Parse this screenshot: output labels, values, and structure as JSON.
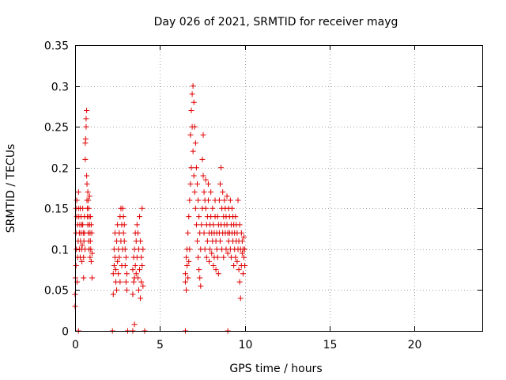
{
  "chart_data": {
    "type": "scatter",
    "title": "Day 026 of 2021, SRMTID for receiver mayg",
    "xlabel": "GPS time / hours",
    "ylabel": "SRMTID / TECUs",
    "xlim": [
      0,
      24
    ],
    "ylim": [
      0,
      0.35
    ],
    "x_ticks": [
      0,
      5,
      10,
      15,
      20
    ],
    "y_ticks": [
      0,
      0.05,
      0.1,
      0.15,
      0.2,
      0.25,
      0.3,
      0.35
    ],
    "x_tick_labels": [
      "0",
      "5",
      "10",
      "15",
      "20"
    ],
    "y_tick_labels": [
      "0",
      "0.05",
      "0.1",
      "0.15",
      "0.2",
      "0.25",
      "0.3",
      "0.35"
    ],
    "grid": true,
    "marker": "+",
    "color": "#e00000",
    "series": [
      {
        "name": "SRMTID",
        "points": [
          [
            0.0,
            0.045
          ],
          [
            0.0,
            0.03
          ],
          [
            0.02,
            0.065
          ],
          [
            0.05,
            0.08
          ],
          [
            0.05,
            0.12
          ],
          [
            0.05,
            0.15
          ],
          [
            0.08,
            0.1
          ],
          [
            0.1,
            0.14
          ],
          [
            0.1,
            0.16
          ],
          [
            0.12,
            0.06
          ],
          [
            0.15,
            0.09
          ],
          [
            0.15,
            0.13
          ],
          [
            0.18,
            0.11
          ],
          [
            0.2,
            0.15
          ],
          [
            0.2,
            0.17
          ],
          [
            0.22,
            0.14
          ],
          [
            0.25,
            0.12
          ],
          [
            0.25,
            0.1
          ],
          [
            0.28,
            0.13
          ],
          [
            0.3,
            0.15
          ],
          [
            0.3,
            0.09
          ],
          [
            0.32,
            0.11
          ],
          [
            0.35,
            0.14
          ],
          [
            0.35,
            0.12
          ],
          [
            0.38,
            0.1
          ],
          [
            0.4,
            0.13
          ],
          [
            0.4,
            0.085
          ],
          [
            0.42,
            0.105
          ],
          [
            0.45,
            0.13
          ],
          [
            0.45,
            0.15
          ],
          [
            0.48,
            0.12
          ],
          [
            0.5,
            0.09
          ],
          [
            0.5,
            0.065
          ],
          [
            0.52,
            0.11
          ],
          [
            0.55,
            0.12
          ],
          [
            0.55,
            0.14
          ],
          [
            0.58,
            0.1
          ],
          [
            0.6,
            0.23
          ],
          [
            0.6,
            0.21
          ],
          [
            0.62,
            0.235
          ],
          [
            0.65,
            0.25
          ],
          [
            0.65,
            0.26
          ],
          [
            0.68,
            0.27
          ],
          [
            0.68,
            0.19
          ],
          [
            0.7,
            0.18
          ],
          [
            0.7,
            0.16
          ],
          [
            0.72,
            0.15
          ],
          [
            0.72,
            0.14
          ],
          [
            0.75,
            0.17
          ],
          [
            0.75,
            0.13
          ],
          [
            0.78,
            0.16
          ],
          [
            0.78,
            0.12
          ],
          [
            0.8,
            0.15
          ],
          [
            0.8,
            0.11
          ],
          [
            0.82,
            0.14
          ],
          [
            0.82,
            0.1
          ],
          [
            0.85,
            0.13
          ],
          [
            0.85,
            0.165
          ],
          [
            0.88,
            0.12
          ],
          [
            0.88,
            0.09
          ],
          [
            0.9,
            0.14
          ],
          [
            0.9,
            0.11
          ],
          [
            0.92,
            0.1
          ],
          [
            0.95,
            0.13
          ],
          [
            0.95,
            0.085
          ],
          [
            0.98,
            0.12
          ],
          [
            1.0,
            0.065
          ],
          [
            1.0,
            0.095
          ],
          [
            2.25,
            0.045
          ],
          [
            2.25,
            0.07
          ],
          [
            2.3,
            0.08
          ],
          [
            2.3,
            0.1
          ],
          [
            2.35,
            0.09
          ],
          [
            2.35,
            0.12
          ],
          [
            2.4,
            0.06
          ],
          [
            2.4,
            0.075
          ],
          [
            2.45,
            0.05
          ],
          [
            2.45,
            0.11
          ],
          [
            2.5,
            0.085
          ],
          [
            2.5,
            0.13
          ],
          [
            2.55,
            0.07
          ],
          [
            2.55,
            0.1
          ],
          [
            2.6,
            0.09
          ],
          [
            2.6,
            0.12
          ],
          [
            2.65,
            0.14
          ],
          [
            2.65,
            0.06
          ],
          [
            2.7,
            0.15
          ],
          [
            2.7,
            0.11
          ],
          [
            2.75,
            0.13
          ],
          [
            2.75,
            0.08
          ],
          [
            2.8,
            0.15
          ],
          [
            2.8,
            0.1
          ],
          [
            2.85,
            0.14
          ],
          [
            2.85,
            0.12
          ],
          [
            2.9,
            0.11
          ],
          [
            2.9,
            0.13
          ],
          [
            2.95,
            0.1
          ],
          [
            2.95,
            0.08
          ],
          [
            3.0,
            0.09
          ],
          [
            3.0,
            0.06
          ],
          [
            3.05,
            0.05
          ],
          [
            3.05,
            0.07
          ],
          [
            3.4,
            0.075
          ],
          [
            3.4,
            0.045
          ],
          [
            3.45,
            0.06
          ],
          [
            3.45,
            0.09
          ],
          [
            3.5,
            0.065
          ],
          [
            3.5,
            0.1
          ],
          [
            3.55,
            0.12
          ],
          [
            3.55,
            0.08
          ],
          [
            3.6,
            0.11
          ],
          [
            3.6,
            0.07
          ],
          [
            3.65,
            0.13
          ],
          [
            3.65,
            0.09
          ],
          [
            3.7,
            0.12
          ],
          [
            3.7,
            0.065
          ],
          [
            3.75,
            0.1
          ],
          [
            3.75,
            0.05
          ],
          [
            3.8,
            0.14
          ],
          [
            3.8,
            0.075
          ],
          [
            3.85,
            0.11
          ],
          [
            3.85,
            0.04
          ],
          [
            3.9,
            0.09
          ],
          [
            3.9,
            0.06
          ],
          [
            3.95,
            0.08
          ],
          [
            3.95,
            0.15
          ],
          [
            4.0,
            0.1
          ],
          [
            4.0,
            0.055
          ],
          [
            6.5,
            0.06
          ],
          [
            6.5,
            0.07
          ],
          [
            6.55,
            0.05
          ],
          [
            6.55,
            0.09
          ],
          [
            6.6,
            0.08
          ],
          [
            6.6,
            0.1
          ],
          [
            6.65,
            0.065
          ],
          [
            6.65,
            0.12
          ],
          [
            6.7,
            0.14
          ],
          [
            6.7,
            0.085
          ],
          [
            6.75,
            0.1
          ],
          [
            6.75,
            0.16
          ],
          [
            6.8,
            0.24
          ],
          [
            6.8,
            0.18
          ],
          [
            6.85,
            0.27
          ],
          [
            6.85,
            0.2
          ],
          [
            6.9,
            0.29
          ],
          [
            6.9,
            0.25
          ],
          [
            6.95,
            0.3
          ],
          [
            6.95,
            0.22
          ],
          [
            7.0,
            0.28
          ],
          [
            7.0,
            0.19
          ],
          [
            7.05,
            0.25
          ],
          [
            7.05,
            0.17
          ],
          [
            7.1,
            0.23
          ],
          [
            7.1,
            0.15
          ],
          [
            7.15,
            0.2
          ],
          [
            7.15,
            0.13
          ],
          [
            7.2,
            0.18
          ],
          [
            7.2,
            0.11
          ],
          [
            7.25,
            0.16
          ],
          [
            7.25,
            0.09
          ],
          [
            7.3,
            0.14
          ],
          [
            7.3,
            0.075
          ],
          [
            7.35,
            0.12
          ],
          [
            7.35,
            0.065
          ],
          [
            7.4,
            0.1
          ],
          [
            7.4,
            0.055
          ],
          [
            7.45,
            0.13
          ],
          [
            7.5,
            0.21
          ],
          [
            7.5,
            0.15
          ],
          [
            7.55,
            0.24
          ],
          [
            7.55,
            0.19
          ],
          [
            7.6,
            0.17
          ],
          [
            7.6,
            0.12
          ],
          [
            7.65,
            0.16
          ],
          [
            7.65,
            0.1
          ],
          [
            7.7,
            0.15
          ],
          [
            7.7,
            0.185
          ],
          [
            7.75,
            0.13
          ],
          [
            7.75,
            0.09
          ],
          [
            7.8,
            0.14
          ],
          [
            7.8,
            0.11
          ],
          [
            7.85,
            0.18
          ],
          [
            7.85,
            0.16
          ],
          [
            7.9,
            0.12
          ],
          [
            7.9,
            0.085
          ],
          [
            7.95,
            0.13
          ],
          [
            7.95,
            0.1
          ],
          [
            8.0,
            0.14
          ],
          [
            8.0,
            0.17
          ],
          [
            8.05,
            0.12
          ],
          [
            8.05,
            0.095
          ],
          [
            8.1,
            0.15
          ],
          [
            8.1,
            0.11
          ],
          [
            8.15,
            0.13
          ],
          [
            8.15,
            0.08
          ],
          [
            8.2,
            0.12
          ],
          [
            8.2,
            0.09
          ],
          [
            8.25,
            0.16
          ],
          [
            8.25,
            0.14
          ],
          [
            8.3,
            0.11
          ],
          [
            8.3,
            0.075
          ],
          [
            8.35,
            0.12
          ],
          [
            8.35,
            0.1
          ],
          [
            8.4,
            0.14
          ],
          [
            8.4,
            0.09
          ],
          [
            8.45,
            0.13
          ],
          [
            8.45,
            0.07
          ],
          [
            8.5,
            0.12
          ],
          [
            8.5,
            0.16
          ],
          [
            8.55,
            0.18
          ],
          [
            8.55,
            0.11
          ],
          [
            8.6,
            0.2
          ],
          [
            8.6,
            0.13
          ],
          [
            8.65,
            0.15
          ],
          [
            8.65,
            0.1
          ],
          [
            8.7,
            0.17
          ],
          [
            8.7,
            0.12
          ],
          [
            8.75,
            0.14
          ],
          [
            8.75,
            0.09
          ],
          [
            8.8,
            0.16
          ],
          [
            8.8,
            0.13
          ],
          [
            8.85,
            0.12
          ],
          [
            8.85,
            0.15
          ],
          [
            8.9,
            0.14
          ],
          [
            8.9,
            0.1
          ],
          [
            8.95,
            0.13
          ],
          [
            8.95,
            0.165
          ],
          [
            9.0,
            0.12
          ],
          [
            9.0,
            0.095
          ],
          [
            9.05,
            0.15
          ],
          [
            9.05,
            0.11
          ],
          [
            9.1,
            0.14
          ],
          [
            9.1,
            0.12
          ],
          [
            9.15,
            0.16
          ],
          [
            9.15,
            0.1
          ],
          [
            9.2,
            0.13
          ],
          [
            9.2,
            0.09
          ],
          [
            9.25,
            0.15
          ],
          [
            9.25,
            0.12
          ],
          [
            9.3,
            0.14
          ],
          [
            9.3,
            0.11
          ],
          [
            9.35,
            0.13
          ],
          [
            9.35,
            0.08
          ],
          [
            9.4,
            0.12
          ],
          [
            9.4,
            0.1
          ],
          [
            9.45,
            0.14
          ],
          [
            9.45,
            0.09
          ],
          [
            9.5,
            0.13
          ],
          [
            9.5,
            0.11
          ],
          [
            9.55,
            0.12
          ],
          [
            9.55,
            0.085
          ],
          [
            9.6,
            0.16
          ],
          [
            9.6,
            0.1
          ],
          [
            9.65,
            0.11
          ],
          [
            9.65,
            0.075
          ],
          [
            9.7,
            0.13
          ],
          [
            9.7,
            0.06
          ],
          [
            9.75,
            0.1
          ],
          [
            9.75,
            0.04
          ],
          [
            9.8,
            0.12
          ],
          [
            9.8,
            0.08
          ],
          [
            9.85,
            0.11
          ],
          [
            9.85,
            0.095
          ],
          [
            9.9,
            0.1
          ],
          [
            9.9,
            0.07
          ],
          [
            9.95,
            0.115
          ],
          [
            9.95,
            0.09
          ],
          [
            10.0,
            0.1
          ],
          [
            10.0,
            0.08
          ],
          [
            0.2,
            0.0
          ],
          [
            2.2,
            0.0
          ],
          [
            3.1,
            0.0
          ],
          [
            3.4,
            0.0
          ],
          [
            3.5,
            0.008
          ],
          [
            4.1,
            0.0
          ],
          [
            6.5,
            0.0
          ],
          [
            9.0,
            0.0
          ]
        ]
      }
    ]
  }
}
